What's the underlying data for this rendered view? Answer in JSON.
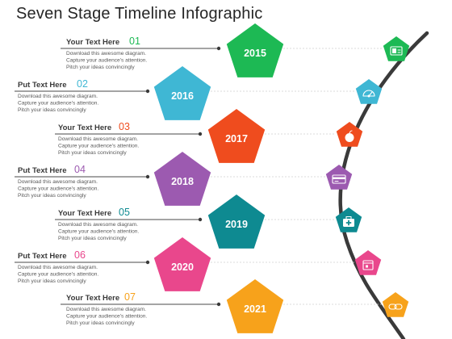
{
  "title": "Seven Stage Timeline Infographic",
  "stages": [
    {
      "heading": "Your Text Here",
      "number": "01",
      "year": "2015",
      "color": "#1db954",
      "icon": "id-card-icon",
      "desc": [
        "Download this awesome diagram.",
        "Capture your audience's attention.",
        "Pitch your ideas convincingly"
      ]
    },
    {
      "heading": "Put Text Here",
      "number": "02",
      "year": "2016",
      "color": "#3fb7d4",
      "icon": "speedometer-icon",
      "desc": [
        "Download this awesome diagram.",
        "Capture your audience's attention.",
        "Pitch your ideas convincingly"
      ]
    },
    {
      "heading": "Your Text Here",
      "number": "03",
      "year": "2017",
      "color": "#ef4c1e",
      "icon": "apple-icon",
      "desc": [
        "Download this awesome diagram.",
        "Capture your audience's attention.",
        "Pitch your ideas convincingly"
      ]
    },
    {
      "heading": "Put Text Here",
      "number": "04",
      "year": "2018",
      "color": "#9c5ab0",
      "icon": "credit-card-icon",
      "desc": [
        "Download this awesome diagram.",
        "Capture your audience's attention.",
        "Pitch your ideas convincingly"
      ]
    },
    {
      "heading": "Your Text Here",
      "number": "05",
      "year": "2019",
      "color": "#0e8a91",
      "icon": "medical-kit-icon",
      "desc": [
        "Download this awesome diagram.",
        "Capture your audience's attention.",
        "Pitch your ideas convincingly"
      ]
    },
    {
      "heading": "Put Text Here",
      "number": "06",
      "year": "2020",
      "color": "#e9478c",
      "icon": "calendar-icon",
      "desc": [
        "Download this awesome diagram.",
        "Capture your audience's attention.",
        "Pitch your ideas convincingly"
      ]
    },
    {
      "heading": "Your Text Here",
      "number": "07",
      "year": "2021",
      "color": "#f7a21b",
      "icon": "chain-link-icon",
      "desc": [
        "Download this awesome diagram.",
        "Capture your audience's attention.",
        "Pitch your ideas convincingly"
      ]
    }
  ]
}
